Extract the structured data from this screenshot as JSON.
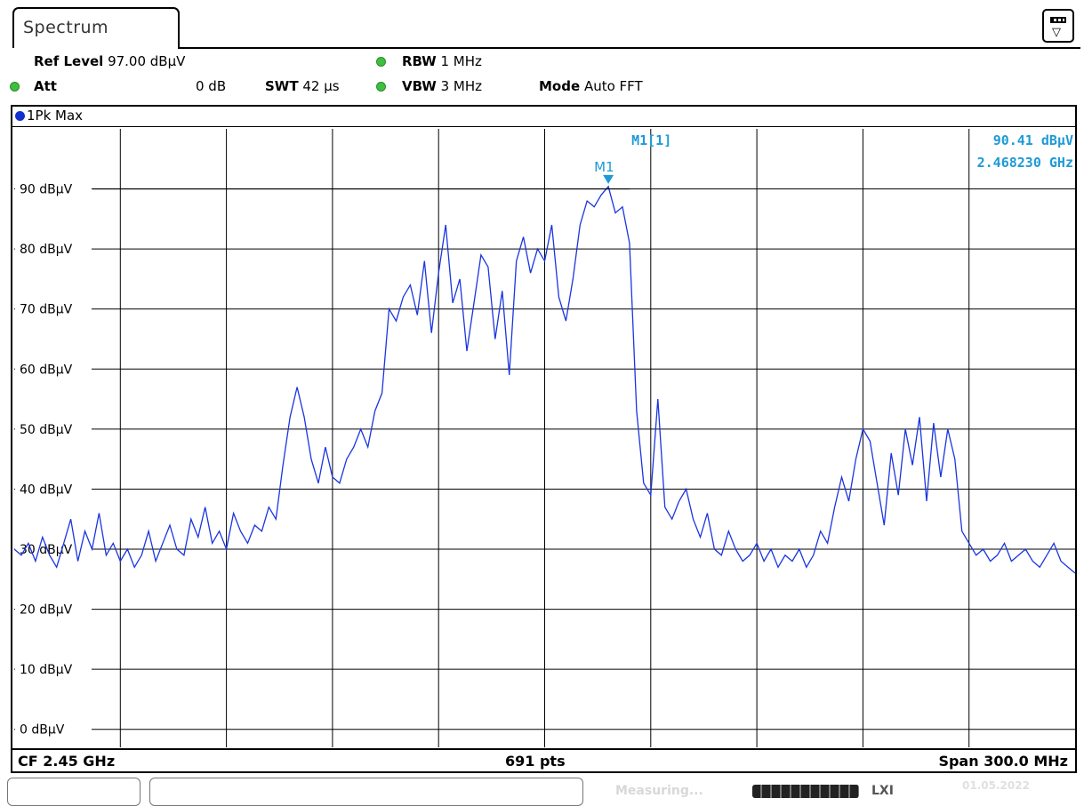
{
  "tab": {
    "label": "Spectrum"
  },
  "header": {
    "ref_level_key": "Ref Level",
    "ref_level_val": "97.00 dBµV",
    "att_key": "Att",
    "att_val": "0 dB",
    "swt_key": "SWT",
    "swt_val": "42 µs",
    "rbw_key": "RBW",
    "rbw_val": "1 MHz",
    "vbw_key": "VBW",
    "vbw_val": "3 MHz",
    "mode_key": "Mode",
    "mode_val": "Auto FFT"
  },
  "trace": {
    "label": "1Pk Max",
    "color": "#1a35e0"
  },
  "marker": {
    "name": "M1",
    "readout_label": "M1[1]",
    "level": "90.41 dBµV",
    "frequency": "2.468230 GHz",
    "color": "#1e9ad6"
  },
  "footer": {
    "cf": "CF 2.45 GHz",
    "pts": "691 pts",
    "span": "Span 300.0 MHz"
  },
  "status": {
    "measuring": "Measuring...",
    "date": "01.05.2022"
  },
  "chart_data": {
    "type": "line",
    "xlim": [
      2.3,
      2.6
    ],
    "ylim": [
      -3,
      100
    ],
    "x_unit": "GHz",
    "y_ticks": [
      {
        "value": 90,
        "label": "90 dBµV"
      },
      {
        "value": 80,
        "label": "80 dBµV"
      },
      {
        "value": 70,
        "label": "70 dBµV"
      },
      {
        "value": 60,
        "label": "60 dBµV"
      },
      {
        "value": 50,
        "label": "50 dBµV"
      },
      {
        "value": 40,
        "label": "40 dBµV"
      },
      {
        "value": 30,
        "label": "30 dBµV"
      },
      {
        "value": 20,
        "label": "20 dBµV"
      },
      {
        "value": 10,
        "label": "10 dBµV"
      },
      {
        "value": 0,
        "label": "0 dBµV"
      }
    ],
    "x_gridlines": 10,
    "grid": true,
    "series": [
      {
        "x": [
          2.3,
          2.302,
          2.304,
          2.306,
          2.308,
          2.31,
          2.312,
          2.314,
          2.316,
          2.318,
          2.32,
          2.322,
          2.324,
          2.326,
          2.328,
          2.33,
          2.332,
          2.334,
          2.336,
          2.338,
          2.34,
          2.342,
          2.344,
          2.346,
          2.348,
          2.35,
          2.352,
          2.354,
          2.356,
          2.358,
          2.36,
          2.362,
          2.364,
          2.366,
          2.368,
          2.37,
          2.372,
          2.374,
          2.376,
          2.378,
          2.38,
          2.382,
          2.384,
          2.386,
          2.388,
          2.39,
          2.392,
          2.394,
          2.396,
          2.398,
          2.4,
          2.402,
          2.404,
          2.406,
          2.408,
          2.41,
          2.412,
          2.414,
          2.416,
          2.418,
          2.42,
          2.422,
          2.424,
          2.426,
          2.428,
          2.43,
          2.432,
          2.434,
          2.436,
          2.438,
          2.44,
          2.442,
          2.444,
          2.446,
          2.448,
          2.45,
          2.452,
          2.454,
          2.456,
          2.458,
          2.46,
          2.462,
          2.464,
          2.466,
          2.468,
          2.47,
          2.472,
          2.474,
          2.476,
          2.478,
          2.48,
          2.482,
          2.484,
          2.486,
          2.488,
          2.49,
          2.492,
          2.494,
          2.496,
          2.498,
          2.5,
          2.502,
          2.504,
          2.506,
          2.508,
          2.51,
          2.512,
          2.514,
          2.516,
          2.518,
          2.52,
          2.522,
          2.524,
          2.526,
          2.528,
          2.53,
          2.532,
          2.534,
          2.536,
          2.538,
          2.54,
          2.542,
          2.544,
          2.546,
          2.548,
          2.55,
          2.552,
          2.554,
          2.556,
          2.558,
          2.56,
          2.562,
          2.564,
          2.566,
          2.568,
          2.57,
          2.572,
          2.574,
          2.576,
          2.578,
          2.58,
          2.582,
          2.584,
          2.586,
          2.588,
          2.59,
          2.592,
          2.594,
          2.596,
          2.598,
          2.6
        ],
        "y": [
          30,
          29,
          31,
          28,
          32,
          29,
          27,
          31,
          35,
          28,
          33,
          30,
          36,
          29,
          31,
          28,
          30,
          27,
          29,
          33,
          28,
          31,
          34,
          30,
          29,
          35,
          32,
          37,
          31,
          33,
          30,
          36,
          33,
          31,
          34,
          33,
          37,
          35,
          44,
          52,
          57,
          52,
          45,
          41,
          47,
          42,
          41,
          45,
          47,
          50,
          47,
          53,
          56,
          70,
          68,
          72,
          74,
          69,
          78,
          66,
          76,
          84,
          71,
          75,
          63,
          71,
          79,
          77,
          65,
          73,
          59,
          78,
          82,
          76,
          80,
          78,
          84,
          72,
          68,
          75,
          84,
          88,
          87,
          89,
          90.4,
          86,
          87,
          81,
          53,
          41,
          39,
          55,
          37,
          35,
          38,
          40,
          35,
          32,
          36,
          30,
          29,
          33,
          30,
          28,
          29,
          31,
          28,
          30,
          27,
          29,
          28,
          30,
          27,
          29,
          33,
          31,
          37,
          42,
          38,
          45,
          50,
          48,
          41,
          34,
          46,
          39,
          50,
          44,
          52,
          38,
          51,
          42,
          50,
          45,
          33,
          31,
          29,
          30,
          28,
          29,
          31,
          28,
          29,
          30,
          28,
          27,
          29,
          31,
          28,
          27,
          26
        ]
      }
    ]
  }
}
